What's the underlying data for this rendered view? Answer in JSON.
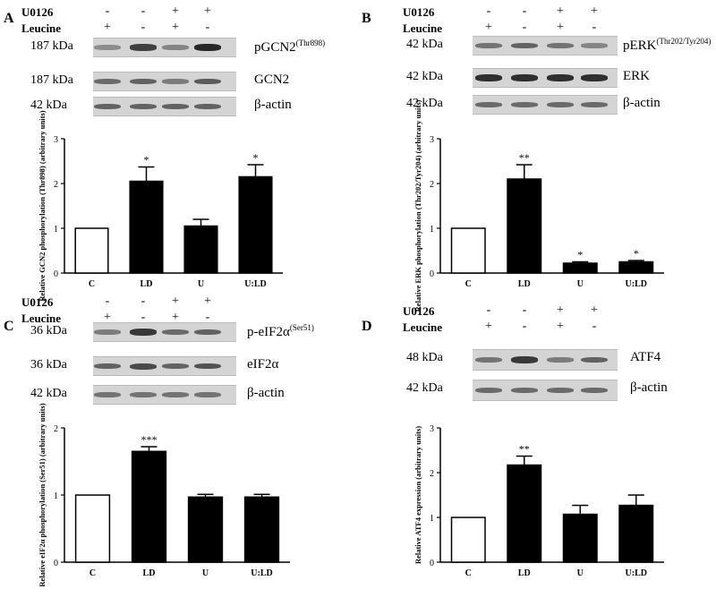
{
  "row_labels": {
    "u0126": "U0126",
    "leucine": "Leucine"
  },
  "signs": {
    "u0126": [
      "-",
      "-",
      "+",
      "+"
    ],
    "leucine": [
      "+",
      "-",
      "+",
      "-"
    ]
  },
  "panels": [
    {
      "label": "A",
      "blots": [
        {
          "kda": "187 kDa",
          "protein": "pGCN2",
          "sup": "(Thr898)",
          "intensity": [
            0.35,
            0.8,
            0.4,
            0.95
          ]
        },
        {
          "kda": "187 kDa",
          "protein": "GCN2",
          "sup": "",
          "intensity": [
            0.55,
            0.6,
            0.45,
            0.65
          ]
        },
        {
          "kda": "42 kDa",
          "protein": "β-actin",
          "sup": "",
          "intensity": [
            0.6,
            0.6,
            0.6,
            0.6
          ]
        }
      ]
    },
    {
      "label": "B",
      "blots": [
        {
          "kda": "42 kDa",
          "protein": "pERK",
          "sup": "(Thr202/Tyr204)",
          "intensity": [
            0.5,
            0.6,
            0.5,
            0.4
          ]
        },
        {
          "kda": "42 kDa",
          "protein": "ERK",
          "sup": "",
          "intensity": [
            0.9,
            0.9,
            0.9,
            0.9
          ]
        },
        {
          "kda": "42 kDa",
          "protein": "β-actin",
          "sup": "",
          "intensity": [
            0.55,
            0.55,
            0.55,
            0.55
          ]
        }
      ]
    },
    {
      "label": "C",
      "blots": [
        {
          "kda": "36 kDa",
          "protein": "p-eIF2α",
          "sup": "(Ser51)",
          "intensity": [
            0.45,
            0.85,
            0.55,
            0.6
          ]
        },
        {
          "kda": "36 kDa",
          "protein": "eIF2α",
          "sup": "",
          "intensity": [
            0.6,
            0.75,
            0.6,
            0.7
          ]
        },
        {
          "kda": "42 kDa",
          "protein": "β-actin",
          "sup": "",
          "intensity": [
            0.5,
            0.5,
            0.5,
            0.5
          ]
        }
      ]
    },
    {
      "label": "D",
      "blots": [
        {
          "kda": "48 kDa",
          "protein": "ATF4",
          "sup": "",
          "intensity": [
            0.5,
            0.85,
            0.45,
            0.6
          ]
        },
        {
          "kda": "42 kDa",
          "protein": "β-actin",
          "sup": "",
          "intensity": [
            0.55,
            0.55,
            0.55,
            0.55
          ]
        }
      ]
    }
  ],
  "chart_data": [
    {
      "panel": "A",
      "type": "bar",
      "categories": [
        "C",
        "LD",
        "U",
        "U:LD"
      ],
      "values": [
        1.0,
        2.05,
        1.05,
        2.15
      ],
      "errors": [
        0,
        0.32,
        0.15,
        0.27
      ],
      "significance": [
        "",
        "*",
        "",
        "*"
      ],
      "fill": [
        "white",
        "black",
        "black",
        "black"
      ],
      "ylabel": "Relative GCN2 phosphorylation (Thr898) (arbitrary units)",
      "ylim": [
        0,
        3
      ],
      "yticks": [
        "0",
        "1",
        "2",
        "3"
      ]
    },
    {
      "panel": "B",
      "type": "bar",
      "categories": [
        "C",
        "LD",
        "U",
        "U:LD"
      ],
      "values": [
        1.0,
        2.1,
        0.22,
        0.25
      ],
      "errors": [
        0,
        0.32,
        0.03,
        0.03
      ],
      "significance": [
        "",
        "**",
        "*",
        "*"
      ],
      "fill": [
        "white",
        "black",
        "black",
        "black"
      ],
      "ylabel": "Relative ERK phosphorylation (Thr202/Tyr204) (arbitrary units)",
      "ylim": [
        0,
        3
      ],
      "yticks": [
        "0",
        "1",
        "2",
        "3"
      ]
    },
    {
      "panel": "C",
      "type": "bar",
      "categories": [
        "C",
        "LD",
        "U",
        "U:LD"
      ],
      "values": [
        1.0,
        1.65,
        0.97,
        0.97
      ],
      "errors": [
        0,
        0.07,
        0.04,
        0.04
      ],
      "significance": [
        "",
        "***",
        "",
        ""
      ],
      "fill": [
        "white",
        "black",
        "black",
        "black"
      ],
      "ylabel": "Relative eIF2α phosphorylation (Ser51) (arbitrary units)",
      "ylim": [
        0,
        2
      ],
      "yticks": [
        "0",
        "1",
        "2"
      ]
    },
    {
      "panel": "D",
      "type": "bar",
      "categories": [
        "C",
        "LD",
        "U",
        "U:LD"
      ],
      "values": [
        1.0,
        2.17,
        1.07,
        1.27
      ],
      "errors": [
        0,
        0.2,
        0.2,
        0.23
      ],
      "significance": [
        "",
        "**",
        "",
        ""
      ],
      "fill": [
        "white",
        "black",
        "black",
        "black"
      ],
      "ylabel": "Relative ATF4 expression (arbitrary units)",
      "ylim": [
        0,
        3
      ],
      "yticks": [
        "0",
        "1",
        "2",
        "3"
      ]
    }
  ]
}
